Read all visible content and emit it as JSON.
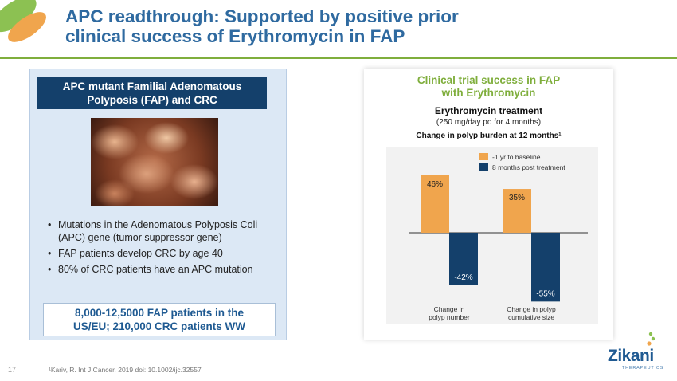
{
  "slide": {
    "title_line1": "APC readthrough: Supported by positive prior",
    "title_line2": "clinical success of Erythromycin in FAP",
    "page_number": "17",
    "footnote": "¹Kariv, R. Int J Cancer. 2019 doi: 10.1002/ijc.32557"
  },
  "left_panel": {
    "heading_line1": "APC mutant Familial Adenomatous",
    "heading_line2": "Polyposis (FAP) and CRC",
    "bullets": [
      "Mutations in the Adenomatous  Polyposis Coli (APC) gene (tumor suppressor gene)",
      "FAP patients develop CRC by age 40",
      "80% of CRC patients have an APC mutation"
    ],
    "stat_line1": "8,000-12,5000 FAP patients in the",
    "stat_line2": "US/EU;  210,000 CRC patients WW"
  },
  "right_panel": {
    "title_line1": "Clinical trial success in FAP",
    "title_line2": "with Erythromycin",
    "treatment": "Erythromycin treatment",
    "dose": "(250 mg/day po for 4 months)"
  },
  "brand": {
    "name": "Zikani",
    "sub": "THERAPEUTICS"
  },
  "colors": {
    "baseline": "#f0a54d",
    "post": "#14406b",
    "title": "#2f6aa0",
    "accent": "#7fae3c"
  },
  "chart_data": {
    "type": "bar",
    "title": "Change in polyp burden at 12 months¹",
    "categories": [
      "Change in polyp number",
      "Change in polyp cumulative size"
    ],
    "category_lines": [
      [
        "Change in",
        "polyp number"
      ],
      [
        "Change in polyp",
        "cumulative size"
      ]
    ],
    "series": [
      {
        "name": "-1 yr to baseline",
        "values": [
          46,
          35
        ],
        "labels": [
          "46%",
          "35%"
        ]
      },
      {
        "name": "8 months post treatment",
        "values": [
          -42,
          -55
        ],
        "labels": [
          "-42%",
          "-55%"
        ]
      }
    ],
    "ylim": [
      -60,
      50
    ],
    "xlabel": "",
    "ylabel": "",
    "legend": "top-right"
  }
}
